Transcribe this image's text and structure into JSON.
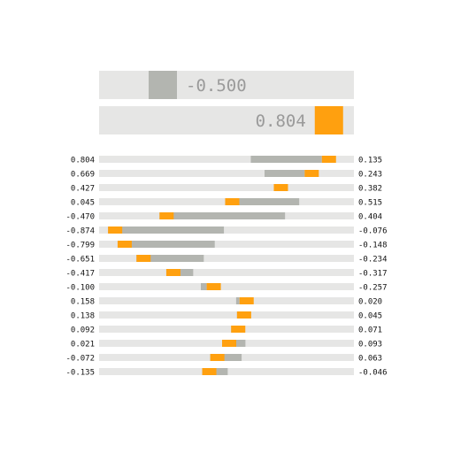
{
  "chart_data": {
    "type": "bar",
    "title": "",
    "xlabel": "",
    "ylabel": "",
    "xlim": [
      -1,
      1
    ],
    "grid": false,
    "summary_bars": [
      {
        "label": "-0.500",
        "value": -0.5
      },
      {
        "label": "0.804",
        "value": 0.804
      }
    ],
    "rows": [
      {
        "left_label": "0.804",
        "left": 0.804,
        "right_label": "0.135",
        "right": 0.135
      },
      {
        "left_label": "0.669",
        "left": 0.669,
        "right_label": "0.243",
        "right": 0.243
      },
      {
        "left_label": "0.427",
        "left": 0.427,
        "right_label": "0.382",
        "right": 0.382
      },
      {
        "left_label": "0.045",
        "left": 0.045,
        "right_label": "0.515",
        "right": 0.515
      },
      {
        "left_label": "-0.470",
        "left": -0.47,
        "right_label": "0.404",
        "right": 0.404
      },
      {
        "left_label": "-0.874",
        "left": -0.874,
        "right_label": "-0.076",
        "right": -0.076
      },
      {
        "left_label": "-0.799",
        "left": -0.799,
        "right_label": "-0.148",
        "right": -0.148
      },
      {
        "left_label": "-0.651",
        "left": -0.651,
        "right_label": "-0.234",
        "right": -0.234
      },
      {
        "left_label": "-0.417",
        "left": -0.417,
        "right_label": "-0.317",
        "right": -0.317
      },
      {
        "left_label": "-0.100",
        "left": -0.1,
        "right_label": "-0.257",
        "right": -0.257
      },
      {
        "left_label": "0.158",
        "left": 0.158,
        "right_label": "0.020",
        "right": 0.02
      },
      {
        "left_label": "0.138",
        "left": 0.138,
        "right_label": "0.045",
        "right": 0.045
      },
      {
        "left_label": "0.092",
        "left": 0.092,
        "right_label": "0.071",
        "right": 0.071
      },
      {
        "left_label": "0.021",
        "left": 0.021,
        "right_label": "0.093",
        "right": 0.093
      },
      {
        "left_label": "-0.072",
        "left": -0.072,
        "right_label": "0.063",
        "right": 0.063
      },
      {
        "left_label": "-0.135",
        "left": -0.135,
        "right_label": "-0.046",
        "right": -0.046
      }
    ]
  },
  "colors": {
    "track": "#e6e6e5",
    "accent": "#ffa00f",
    "fill": "#b3b5b0",
    "summary_text": "#9a9a9a",
    "label_text": "#111111"
  }
}
